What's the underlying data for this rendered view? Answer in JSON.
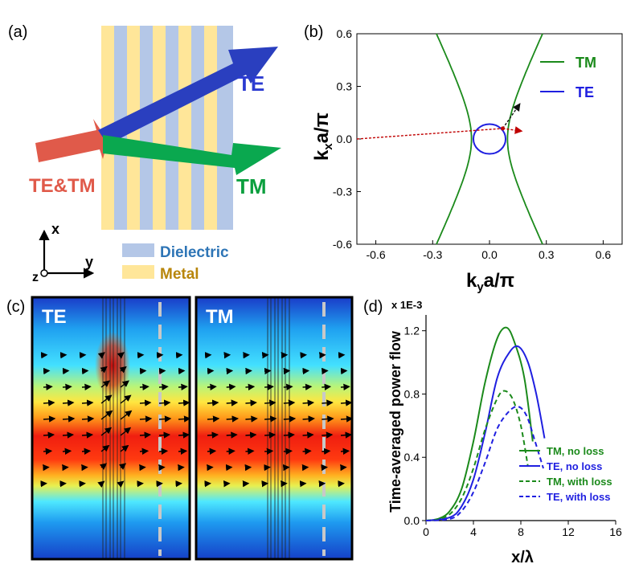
{
  "panels": {
    "a": "(a)",
    "b": "(b)",
    "c": "(c)",
    "d": "(d)"
  },
  "panel_a": {
    "beam_labels": {
      "incident": "TE&TM",
      "te": "TE",
      "tm": "TM"
    },
    "axes": {
      "x": "x",
      "y": "y",
      "z": "z"
    },
    "legend": [
      {
        "label": "Dielectric",
        "color": "#b4c7e7"
      },
      {
        "label": "Metal",
        "color": "#ffe699"
      }
    ],
    "colors": {
      "incident": "#e05a4a",
      "te": "#2a3fbf",
      "tm": "#0aa84f",
      "te_text": "#2b3bd1",
      "tm_text": "#0b9f3e",
      "incident_text": "#e05a4a",
      "dielectric_text": "#2e75b6",
      "metal_text": "#b8860b"
    }
  },
  "panel_c": {
    "labels": {
      "te": "TE",
      "tm": "TM"
    }
  },
  "chart_data": [
    {
      "type": "line",
      "id": "b",
      "xlabel": "k_ya/π",
      "ylabel": "k_xa/π",
      "xlim": [
        -0.7,
        0.7
      ],
      "ylim": [
        -0.6,
        0.6
      ],
      "xticks": [
        "-0.6",
        "-0.3",
        "0.0",
        "0.3",
        "0.6"
      ],
      "yticks": [
        "0.6",
        "0.3",
        "0.0",
        "-0.3",
        "-0.6"
      ],
      "legend": [
        {
          "name": "TM",
          "color": "#1b8a1b"
        },
        {
          "name": "TE",
          "color": "#1f1fe0"
        }
      ],
      "series": [
        {
          "name": "TM",
          "shape": "hyperbola",
          "ky_at_kx0": 0.095,
          "ky_at_kx_max": 0.28
        },
        {
          "name": "TE",
          "shape": "circle",
          "radius": 0.085
        }
      ]
    },
    {
      "type": "line",
      "id": "d",
      "xlabel": "x/λ",
      "ylabel": "Time-averaged power flow",
      "scale_note": "x 1E-3",
      "xlim": [
        0,
        16
      ],
      "ylim": [
        0,
        1.3
      ],
      "xticks": [
        "0",
        "4",
        "8",
        "12",
        "16"
      ],
      "yticks": [
        "0.0",
        "0.4",
        "0.8",
        "1.2"
      ],
      "series": [
        {
          "name": "TM, no loss",
          "color": "#1b8a1b",
          "dash": false,
          "x": [
            0,
            1,
            2,
            3,
            4,
            5,
            6,
            6.8,
            7.5,
            8.3,
            9.0
          ],
          "y": [
            0,
            0.01,
            0.06,
            0.2,
            0.5,
            0.88,
            1.15,
            1.22,
            1.12,
            0.9,
            0.5
          ]
        },
        {
          "name": "TE, no loss",
          "color": "#1f1fe0",
          "dash": false,
          "x": [
            0,
            2,
            3,
            4,
            5,
            6,
            7,
            7.8,
            8.6,
            9.3,
            10.0
          ],
          "y": [
            0,
            0.02,
            0.09,
            0.26,
            0.56,
            0.9,
            1.06,
            1.1,
            1.0,
            0.8,
            0.52
          ]
        },
        {
          "name": "TM, with loss",
          "color": "#1b8a1b",
          "dash": true,
          "x": [
            0,
            1,
            2,
            3,
            4,
            5,
            6,
            6.6,
            7.3,
            8.0,
            8.6
          ],
          "y": [
            0,
            0.01,
            0.04,
            0.14,
            0.33,
            0.58,
            0.77,
            0.82,
            0.77,
            0.6,
            0.34
          ]
        },
        {
          "name": "TE, with loss",
          "color": "#1f1fe0",
          "dash": true,
          "x": [
            0,
            2,
            3,
            4,
            5,
            6,
            7,
            7.8,
            8.5,
            9.2,
            9.9
          ],
          "y": [
            0,
            0.01,
            0.06,
            0.18,
            0.37,
            0.58,
            0.69,
            0.72,
            0.66,
            0.5,
            0.33
          ]
        }
      ]
    }
  ]
}
